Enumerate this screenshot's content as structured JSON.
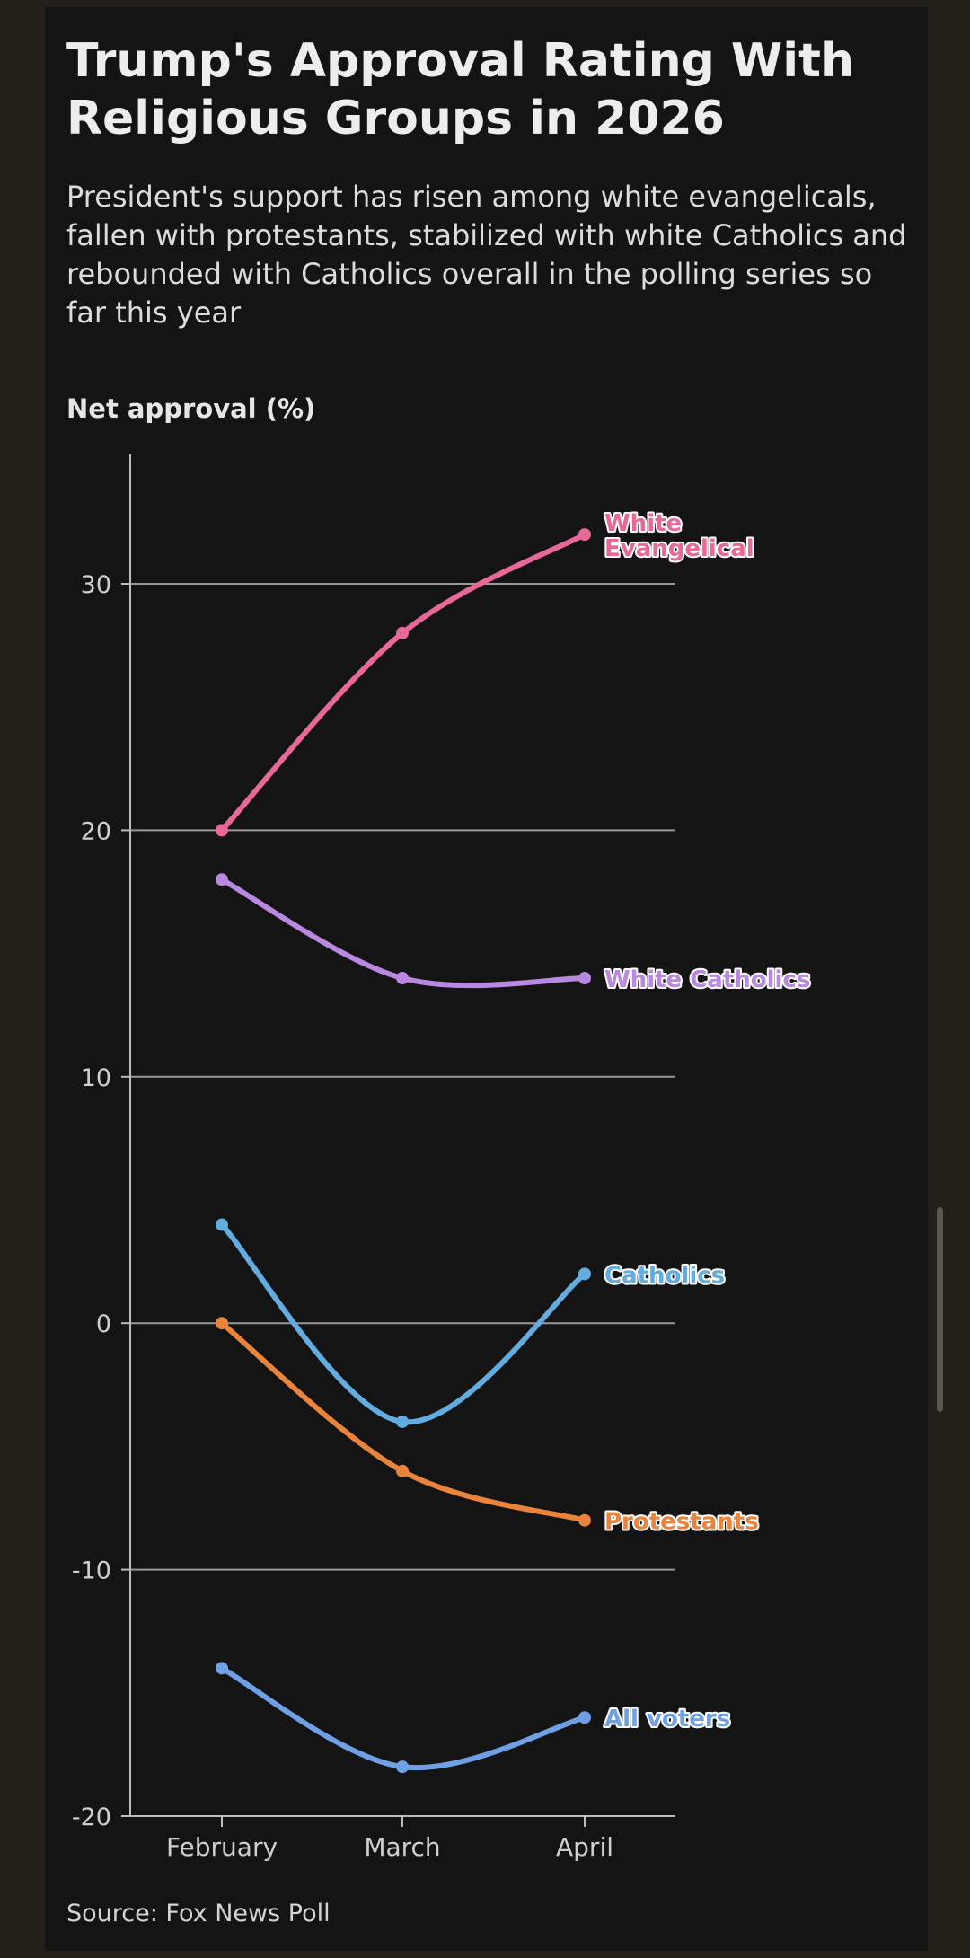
{
  "title": "Trump's Approval Rating With Religious Groups in 2026",
  "subtitle": "President's support has risen among white evangelicals, fallen with protestants, stabilized with white Catholics and rebounded with Catholics overall in the polling series so far this year",
  "source": "Source: Fox News Poll",
  "chart_data": {
    "type": "line",
    "ylabel": "Net approval (%)",
    "xlabel": "",
    "categories": [
      "February",
      "March",
      "April"
    ],
    "ylim": [
      -20,
      35
    ],
    "yticks": [
      30,
      20,
      10,
      0,
      -10,
      -20
    ],
    "ytick_labels": [
      "30",
      "20",
      "10",
      "0",
      "-10",
      "-20"
    ],
    "grid": "horizontal",
    "legend": "direct labels at line ends",
    "series": [
      {
        "name": "White Evangelical",
        "label_lines": [
          "White",
          "Evangelical"
        ],
        "values": [
          20,
          28,
          32
        ],
        "color": "#e8689a"
      },
      {
        "name": "White Catholics",
        "label_lines": [
          "White Catholics"
        ],
        "values": [
          18,
          14,
          14
        ],
        "color": "#b988e0"
      },
      {
        "name": "Catholics",
        "label_lines": [
          "Catholics"
        ],
        "values": [
          4,
          -4,
          2
        ],
        "color": "#62ace0"
      },
      {
        "name": "Protestants",
        "label_lines": [
          "Protestants"
        ],
        "values": [
          0,
          -6,
          -8
        ],
        "color": "#e9843c"
      },
      {
        "name": "All voters",
        "label_lines": [
          "All voters"
        ],
        "values": [
          -14,
          -18,
          -16
        ],
        "color": "#6f9fe4"
      }
    ]
  }
}
